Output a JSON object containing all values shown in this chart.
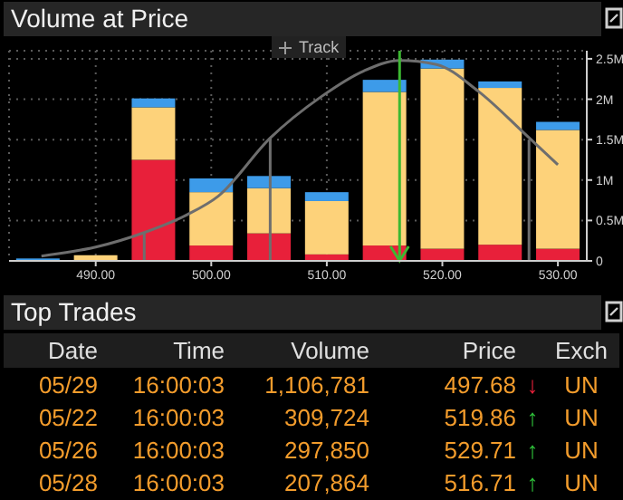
{
  "chart_data": [
    {
      "type": "bar",
      "title": "Volume at Price",
      "stacked": true,
      "x": [
        485,
        490,
        495,
        500,
        505,
        510,
        515,
        520,
        525,
        530
      ],
      "series": [
        {
          "color": "#e8203a",
          "values": [
            0,
            null,
            1.25,
            0.19,
            0.34,
            0.08,
            0.19,
            0.15,
            0.2,
            0.15
          ]
        },
        {
          "color": "#fdd27a",
          "values": [
            0,
            0.07,
            0.65,
            0.66,
            0.56,
            0.66,
            1.9,
            2.23,
            1.94,
            1.47
          ]
        },
        {
          "color": "#3d9be9",
          "values": [
            0.03,
            null,
            0.11,
            0.17,
            0.15,
            0.11,
            0.15,
            0.11,
            0.08,
            0.1
          ]
        },
        {
          "type": "line",
          "color": "#6e6e6e",
          "x": [
            485.3,
            490,
            494.2,
            497.9,
            500.6,
            505.1,
            509.5,
            513.2,
            516.3,
            519.5,
            523.1,
            527.3,
            530
          ],
          "values": [
            0.06,
            0.17,
            0.35,
            0.57,
            0.8,
            1.52,
            2.03,
            2.35,
            2.48,
            2.43,
            2.1,
            1.55,
            1.19
          ]
        },
        {
          "type": "line",
          "color": "#6e6e6e",
          "x": [
            494.2,
            494.2
          ],
          "values": [
            0,
            0.35
          ]
        },
        {
          "type": "line",
          "color": "#6e6e6e",
          "x": [
            505.1,
            505.1
          ],
          "values": [
            0,
            1.52
          ]
        },
        {
          "type": "line",
          "color": "#6e6e6e",
          "x": [
            527.5,
            527.5
          ],
          "values": [
            0,
            1.5
          ]
        }
      ],
      "ref_lines": [
        {
          "axis": "x",
          "value": 516.3,
          "color": "#3cb832"
        }
      ],
      "xlim": [
        482.5,
        532.5
      ],
      "xticks": [
        {
          "value": 490,
          "label": "490.00"
        },
        {
          "value": 500,
          "label": "500.00"
        },
        {
          "value": 510,
          "label": "510.00"
        },
        {
          "value": 520,
          "label": "520.00"
        },
        {
          "value": 530,
          "label": "530.00"
        }
      ],
      "ylim": [
        0,
        2.6
      ],
      "yticks": [
        0,
        {
          "value": 0.5,
          "label": "0.5M"
        },
        {
          "value": 1,
          "label": "1M"
        },
        {
          "value": 1.5,
          "label": "1.5M"
        },
        {
          "value": 2,
          "label": "2M"
        },
        {
          "value": 2.5,
          "label": "2.5M"
        }
      ],
      "grid": true,
      "annotations": [
        "Track"
      ]
    },
    {
      "type": "other",
      "title": "Top Trades",
      "categories": [
        "Date",
        "Time",
        "Volume",
        "Price",
        null,
        "Exch"
      ],
      "cell_labels": [
        [
          "05/29",
          "16:00:03",
          "1,106,781",
          "497.68",
          "↓",
          "UN"
        ],
        [
          "05/22",
          "16:00:03",
          "309,724",
          "519.86",
          "↑",
          "UN"
        ],
        [
          "05/26",
          "16:00:03",
          "297,850",
          "529.71",
          "↑",
          "UN"
        ],
        [
          "05/28",
          "16:00:03",
          "207,864",
          "516.71",
          "↑",
          "UN"
        ]
      ]
    }
  ]
}
